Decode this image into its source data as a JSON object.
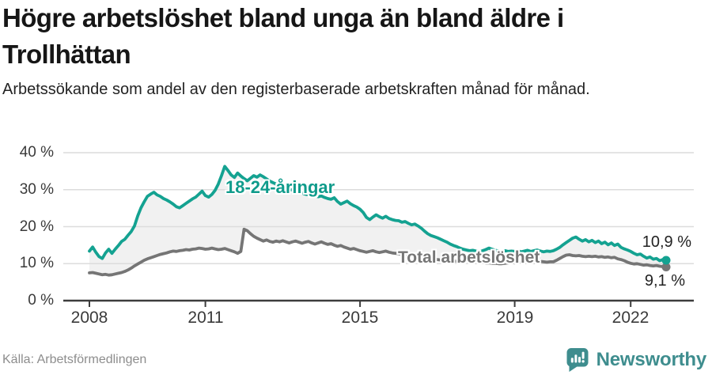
{
  "header": {
    "title": "Högre arbetslöshet bland unga än bland äldre i Trollhättan",
    "subtitle": "Arbetssökande som andel av den registerbaserade arbetskraften månad för månad."
  },
  "footer": {
    "source": "Källa: Arbetsförmedlingen",
    "brand": "Newsworthy"
  },
  "colors": {
    "young_line": "#14a291",
    "young_label": "#0f9b8b",
    "total_line": "#757575",
    "total_label": "#767676",
    "band_fill": "#f1f1f1",
    "grid": "#dcdcdc",
    "axis": "#3d3d3d",
    "tick_text": "#3a3a3a",
    "end_label_text": "#222222",
    "brand_teal": "#3e8d8e"
  },
  "chart_data": {
    "type": "line",
    "title": "Högre arbetslöshet bland unga än bland äldre i Trollhättan",
    "subtitle": "Arbetssökande som andel av den registerbaserade arbetskraften månad för månad.",
    "unit": "%",
    "x_interval": "month",
    "x_start": "2008-01",
    "x_end": "2022-12",
    "ylim": [
      0,
      40
    ],
    "grid": "horizontal",
    "legend_position": "inline-labels",
    "y_ticks": [
      {
        "value": 0,
        "label": "0 %"
      },
      {
        "value": 10,
        "label": "10 %"
      },
      {
        "value": 20,
        "label": "20 %"
      },
      {
        "value": 30,
        "label": "30 %"
      },
      {
        "value": 40,
        "label": "40 %"
      }
    ],
    "x_ticks": [
      {
        "year": 2008,
        "label": "2008"
      },
      {
        "year": 2011,
        "label": "2011"
      },
      {
        "year": 2015,
        "label": "2015"
      },
      {
        "year": 2019,
        "label": "2019"
      },
      {
        "year": 2022,
        "label": "2022"
      }
    ],
    "series": [
      {
        "name": "18-24-åringar",
        "color": "#14a291",
        "end_value": 10.9,
        "end_label": "10,9 %",
        "values": [
          13.4,
          14.5,
          13.1,
          11.9,
          11.4,
          12.9,
          13.9,
          12.8,
          13.9,
          14.9,
          16.0,
          16.6,
          17.7,
          18.7,
          20.2,
          22.9,
          25.1,
          26.7,
          28.2,
          28.8,
          29.3,
          28.6,
          28.2,
          27.6,
          27.2,
          26.7,
          26.1,
          25.4,
          25.1,
          25.7,
          26.3,
          26.9,
          27.5,
          28.0,
          28.8,
          29.6,
          28.4,
          28.0,
          28.7,
          29.8,
          31.5,
          33.8,
          36.3,
          35.2,
          34.0,
          33.3,
          34.5,
          33.7,
          33.0,
          32.4,
          33.1,
          33.8,
          33.4,
          34.0,
          33.5,
          32.9,
          32.3,
          31.9,
          31.5,
          31.1,
          30.8,
          30.4,
          30.1,
          29.9,
          29.6,
          29.3,
          29.1,
          28.8,
          28.6,
          28.5,
          28.3,
          28.1,
          28.3,
          27.9,
          27.6,
          27.4,
          27.8,
          26.8,
          26.1,
          26.5,
          26.9,
          26.2,
          25.7,
          25.3,
          24.7,
          23.8,
          22.5,
          21.9,
          22.6,
          23.2,
          22.7,
          22.3,
          22.8,
          22.2,
          21.9,
          21.7,
          21.6,
          21.2,
          21.4,
          20.9,
          20.5,
          20.7,
          20.2,
          19.6,
          18.8,
          18.1,
          17.6,
          17.3,
          17.0,
          16.6,
          16.2,
          15.8,
          15.3,
          14.9,
          14.6,
          14.2,
          13.9,
          13.7,
          13.5,
          13.6,
          13.4,
          13.2,
          13.5,
          13.8,
          14.2,
          13.9,
          13.6,
          13.4,
          13.2,
          13.5,
          13.3,
          13.4,
          13.3,
          13.5,
          13.2,
          13.4,
          13.6,
          13.3,
          13.5,
          13.7,
          13.4,
          13.2,
          13.4,
          13.3,
          13.5,
          13.9,
          14.4,
          15.1,
          15.7,
          16.3,
          16.9,
          17.2,
          16.6,
          16.1,
          16.5,
          15.9,
          16.3,
          15.7,
          16.1,
          15.4,
          15.8,
          15.1,
          15.6,
          14.9,
          15.3,
          14.4,
          14.0,
          13.7,
          13.3,
          12.8,
          12.4,
          12.6,
          12.0,
          11.5,
          11.8,
          11.2,
          11.4,
          10.8,
          11.1,
          10.9
        ]
      },
      {
        "name": "Total arbetslöshet",
        "color": "#757575",
        "end_value": 9.1,
        "end_label": "9,1 %",
        "values": [
          7.5,
          7.6,
          7.4,
          7.2,
          7.0,
          7.1,
          6.9,
          7.0,
          7.2,
          7.4,
          7.6,
          7.9,
          8.3,
          8.8,
          9.4,
          9.9,
          10.4,
          10.9,
          11.3,
          11.6,
          11.9,
          12.2,
          12.5,
          12.7,
          12.9,
          13.2,
          13.4,
          13.3,
          13.5,
          13.6,
          13.8,
          13.7,
          13.9,
          14.0,
          14.2,
          14.1,
          13.9,
          14.0,
          14.2,
          14.0,
          13.8,
          13.9,
          14.1,
          13.8,
          13.5,
          13.2,
          12.8,
          13.3,
          19.3,
          18.9,
          18.1,
          17.4,
          16.9,
          16.5,
          16.1,
          16.4,
          16.0,
          15.8,
          16.1,
          15.9,
          16.2,
          15.9,
          15.6,
          15.9,
          16.1,
          15.8,
          15.5,
          15.8,
          16.0,
          15.6,
          15.3,
          15.6,
          15.9,
          15.5,
          15.2,
          15.4,
          15.0,
          14.7,
          14.9,
          14.5,
          14.2,
          13.9,
          14.1,
          13.8,
          13.5,
          13.3,
          13.1,
          13.3,
          13.5,
          13.2,
          13.0,
          13.2,
          13.4,
          13.1,
          12.9,
          12.8,
          12.7,
          12.5,
          12.4,
          12.2,
          12.1,
          11.9,
          11.8,
          11.6,
          11.5,
          11.4,
          11.3,
          11.2,
          11.1,
          11.0,
          10.9,
          10.8,
          10.8,
          10.7,
          10.6,
          10.6,
          10.5,
          10.5,
          10.4,
          10.4,
          10.4,
          10.3,
          10.3,
          10.2,
          10.2,
          10.1,
          10.1,
          10.0,
          10.0,
          10.1,
          10.2,
          10.3,
          10.2,
          10.3,
          10.4,
          10.3,
          10.4,
          10.5,
          10.4,
          10.5,
          10.6,
          10.5,
          10.4,
          10.5,
          10.5,
          10.9,
          11.4,
          11.9,
          12.3,
          12.4,
          12.2,
          12.1,
          12.2,
          12.0,
          11.9,
          12.0,
          11.9,
          12.0,
          11.8,
          11.9,
          11.7,
          11.8,
          11.6,
          11.7,
          11.3,
          11.1,
          10.8,
          10.4,
          10.1,
          9.9,
          10.0,
          9.8,
          9.6,
          9.7,
          9.5,
          9.4,
          9.5,
          9.3,
          9.2,
          9.1
        ]
      }
    ]
  }
}
